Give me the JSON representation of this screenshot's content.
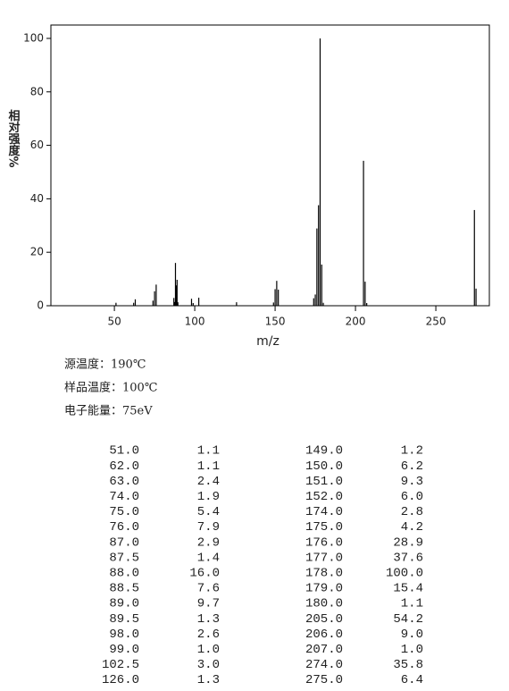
{
  "chart_data": {
    "type": "stem",
    "x_label": "m/z",
    "y_label": "相对强度%",
    "x": [
      51,
      62,
      63,
      74,
      75,
      76,
      87,
      87.5,
      88,
      88.5,
      89,
      89.5,
      98,
      99,
      102.5,
      126,
      149,
      150,
      151,
      152,
      174,
      175,
      176,
      177,
      178,
      179,
      180,
      205,
      206,
      207,
      274,
      275
    ],
    "values": [
      1.1,
      1.1,
      2.4,
      1.9,
      5.4,
      7.9,
      2.9,
      1.4,
      16.0,
      7.6,
      9.7,
      1.3,
      2.6,
      1.0,
      3.0,
      1.3,
      1.2,
      6.2,
      9.3,
      6.0,
      2.8,
      4.2,
      28.9,
      37.6,
      100.0,
      15.4,
      1.1,
      54.2,
      9.0,
      1.0,
      35.8,
      6.4
    ],
    "color": "#000000",
    "xlim": [
      10.5,
      283.3
    ],
    "xticks": [
      50,
      100,
      150,
      200,
      250
    ],
    "ylim": [
      0,
      105
    ],
    "yticks": [
      0,
      20,
      40,
      60,
      80,
      100
    ]
  },
  "info": [
    "源温度：190℃",
    "样品温度：100℃",
    "电子能量：75eV"
  ],
  "table": {
    "rows": [
      [
        "51.0",
        "1.1",
        "149.0",
        "1.2"
      ],
      [
        "62.0",
        "1.1",
        "150.0",
        "6.2"
      ],
      [
        "63.0",
        "2.4",
        "151.0",
        "9.3"
      ],
      [
        "74.0",
        "1.9",
        "152.0",
        "6.0"
      ],
      [
        "75.0",
        "5.4",
        "174.0",
        "2.8"
      ],
      [
        "76.0",
        "7.9",
        "175.0",
        "4.2"
      ],
      [
        "87.0",
        "2.9",
        "176.0",
        "28.9"
      ],
      [
        "87.5",
        "1.4",
        "177.0",
        "37.6"
      ],
      [
        "88.0",
        "16.0",
        "178.0",
        "100.0"
      ],
      [
        "88.5",
        "7.6",
        "179.0",
        "15.4"
      ],
      [
        "89.0",
        "9.7",
        "180.0",
        "1.1"
      ],
      [
        "89.5",
        "1.3",
        "205.0",
        "54.2"
      ],
      [
        "98.0",
        "2.6",
        "206.0",
        "9.0"
      ],
      [
        "99.0",
        "1.0",
        "207.0",
        "1.0"
      ],
      [
        "102.5",
        "3.0",
        "274.0",
        "35.8"
      ],
      [
        "126.0",
        "1.3",
        "275.0",
        "6.4"
      ]
    ]
  }
}
